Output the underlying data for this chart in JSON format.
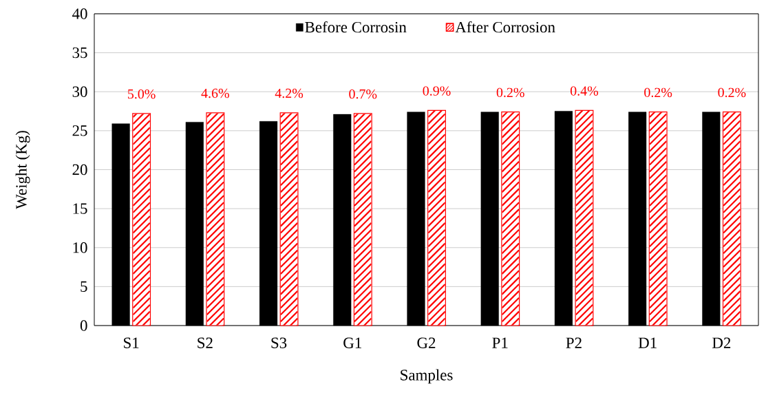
{
  "chart_data": {
    "type": "bar",
    "xlabel": "Samples",
    "ylabel": "Weight  (Kg)",
    "categories": [
      "S1",
      "S2",
      "S3",
      "G1",
      "G2",
      "P1",
      "P2",
      "D1",
      "D2"
    ],
    "series": [
      {
        "name": "Before Corrosin",
        "color": "#000000",
        "values": [
          25.9,
          26.1,
          26.2,
          27.1,
          27.4,
          27.4,
          27.5,
          27.4,
          27.4
        ]
      },
      {
        "name": "After Corrosion",
        "color": "#ff0000",
        "values": [
          27.2,
          27.3,
          27.3,
          27.2,
          27.6,
          27.4,
          27.6,
          27.4,
          27.4
        ]
      }
    ],
    "annotations": [
      {
        "text": "5.0%",
        "x": "S1",
        "y": 27.2
      },
      {
        "text": "4.6%",
        "x": "S2",
        "y": 27.3
      },
      {
        "text": "4.2%",
        "x": "S3",
        "y": 27.3
      },
      {
        "text": "0.7%",
        "x": "G1",
        "y": 27.2
      },
      {
        "text": "0.9%",
        "x": "G2",
        "y": 27.6
      },
      {
        "text": "0.2%",
        "x": "P1",
        "y": 27.4
      },
      {
        "text": "0.4%",
        "x": "P2",
        "y": 27.6
      },
      {
        "text": "0.2%",
        "x": "D1",
        "y": 27.4
      },
      {
        "text": "0.2%",
        "x": "D2",
        "y": 27.4
      }
    ],
    "ylim": [
      0,
      40
    ],
    "yticks": [
      0,
      5,
      10,
      15,
      20,
      25,
      30,
      35,
      40
    ],
    "grid": "y",
    "legend": "top"
  }
}
